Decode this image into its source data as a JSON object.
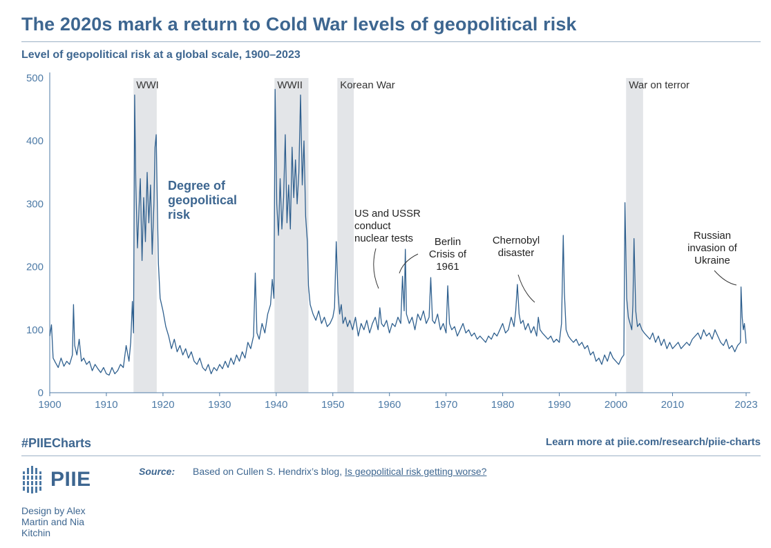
{
  "header": {
    "title": "The 2020s mark a return to Cold War levels of geopolitical risk",
    "subtitle": "Level of geopolitical risk at a global scale, 1900–2023"
  },
  "chart_data": {
    "type": "line",
    "xlim": [
      1900,
      2023
    ],
    "ylim": [
      0,
      500
    ],
    "yticks": [
      0,
      100,
      200,
      300,
      400,
      500
    ],
    "xticks": [
      1900,
      1910,
      1920,
      1930,
      1940,
      1950,
      1960,
      1970,
      1980,
      1990,
      2000,
      2010,
      2023
    ],
    "grid": false,
    "line_color": "#2e5f8e",
    "band_color": "#e3e5e8",
    "series": [
      {
        "name": "Degree of geopolitical risk",
        "points": [
          [
            1900.0,
            90
          ],
          [
            1900.3,
            108
          ],
          [
            1900.6,
            55
          ],
          [
            1901.0,
            48
          ],
          [
            1901.5,
            40
          ],
          [
            1902.0,
            55
          ],
          [
            1902.5,
            42
          ],
          [
            1903.0,
            50
          ],
          [
            1903.5,
            45
          ],
          [
            1904.0,
            60
          ],
          [
            1904.2,
            140
          ],
          [
            1904.4,
            75
          ],
          [
            1904.8,
            60
          ],
          [
            1905.2,
            85
          ],
          [
            1905.6,
            50
          ],
          [
            1906.0,
            55
          ],
          [
            1906.5,
            45
          ],
          [
            1907.0,
            50
          ],
          [
            1907.5,
            35
          ],
          [
            1908.0,
            45
          ],
          [
            1908.5,
            38
          ],
          [
            1909.0,
            32
          ],
          [
            1909.5,
            40
          ],
          [
            1910.0,
            30
          ],
          [
            1910.5,
            28
          ],
          [
            1911.0,
            40
          ],
          [
            1911.5,
            30
          ],
          [
            1912.0,
            35
          ],
          [
            1912.5,
            45
          ],
          [
            1913.0,
            40
          ],
          [
            1913.5,
            75
          ],
          [
            1914.0,
            50
          ],
          [
            1914.3,
            80
          ],
          [
            1914.6,
            145
          ],
          [
            1914.8,
            95
          ],
          [
            1915.0,
            473
          ],
          [
            1915.2,
            330
          ],
          [
            1915.5,
            230
          ],
          [
            1915.8,
            300
          ],
          [
            1916.0,
            340
          ],
          [
            1916.3,
            210
          ],
          [
            1916.6,
            310
          ],
          [
            1916.9,
            240
          ],
          [
            1917.2,
            350
          ],
          [
            1917.5,
            270
          ],
          [
            1917.8,
            330
          ],
          [
            1918.1,
            220
          ],
          [
            1918.4,
            300
          ],
          [
            1918.6,
            390
          ],
          [
            1918.8,
            410
          ],
          [
            1919.0,
            300
          ],
          [
            1919.2,
            205
          ],
          [
            1919.5,
            150
          ],
          [
            1920.0,
            130
          ],
          [
            1920.5,
            105
          ],
          [
            1921.0,
            90
          ],
          [
            1921.5,
            70
          ],
          [
            1922.0,
            85
          ],
          [
            1922.5,
            65
          ],
          [
            1923.0,
            75
          ],
          [
            1923.5,
            60
          ],
          [
            1924.0,
            70
          ],
          [
            1924.5,
            55
          ],
          [
            1925.0,
            65
          ],
          [
            1925.5,
            50
          ],
          [
            1926.0,
            45
          ],
          [
            1926.5,
            55
          ],
          [
            1927.0,
            40
          ],
          [
            1927.5,
            35
          ],
          [
            1928.0,
            45
          ],
          [
            1928.5,
            30
          ],
          [
            1929.0,
            40
          ],
          [
            1929.5,
            35
          ],
          [
            1930.0,
            45
          ],
          [
            1930.5,
            38
          ],
          [
            1931.0,
            50
          ],
          [
            1931.5,
            40
          ],
          [
            1932.0,
            55
          ],
          [
            1932.5,
            45
          ],
          [
            1933.0,
            60
          ],
          [
            1933.5,
            50
          ],
          [
            1934.0,
            65
          ],
          [
            1934.5,
            55
          ],
          [
            1935.0,
            80
          ],
          [
            1935.5,
            70
          ],
          [
            1936.0,
            90
          ],
          [
            1936.3,
            190
          ],
          [
            1936.6,
            95
          ],
          [
            1937.0,
            85
          ],
          [
            1937.5,
            110
          ],
          [
            1938.0,
            95
          ],
          [
            1938.5,
            125
          ],
          [
            1939.0,
            140
          ],
          [
            1939.3,
            180
          ],
          [
            1939.6,
            150
          ],
          [
            1939.8,
            482
          ],
          [
            1940.1,
            300
          ],
          [
            1940.4,
            250
          ],
          [
            1940.7,
            340
          ],
          [
            1941.0,
            260
          ],
          [
            1941.3,
            310
          ],
          [
            1941.6,
            410
          ],
          [
            1941.9,
            270
          ],
          [
            1942.2,
            330
          ],
          [
            1942.5,
            260
          ],
          [
            1942.8,
            390
          ],
          [
            1943.1,
            310
          ],
          [
            1943.4,
            370
          ],
          [
            1943.7,
            300
          ],
          [
            1944.0,
            350
          ],
          [
            1944.3,
            473
          ],
          [
            1944.6,
            330
          ],
          [
            1944.9,
            400
          ],
          [
            1945.2,
            280
          ],
          [
            1945.5,
            240
          ],
          [
            1945.7,
            170
          ],
          [
            1946.0,
            140
          ],
          [
            1946.5,
            125
          ],
          [
            1947.0,
            115
          ],
          [
            1947.5,
            130
          ],
          [
            1948.0,
            110
          ],
          [
            1948.5,
            120
          ],
          [
            1949.0,
            105
          ],
          [
            1949.5,
            110
          ],
          [
            1950.0,
            120
          ],
          [
            1950.3,
            135
          ],
          [
            1950.6,
            240
          ],
          [
            1950.9,
            160
          ],
          [
            1951.2,
            125
          ],
          [
            1951.5,
            140
          ],
          [
            1951.8,
            110
          ],
          [
            1952.2,
            120
          ],
          [
            1952.6,
            105
          ],
          [
            1953.0,
            115
          ],
          [
            1953.5,
            100
          ],
          [
            1954.0,
            120
          ],
          [
            1954.5,
            90
          ],
          [
            1955.0,
            110
          ],
          [
            1955.5,
            100
          ],
          [
            1956.0,
            115
          ],
          [
            1956.5,
            95
          ],
          [
            1957.0,
            110
          ],
          [
            1957.5,
            120
          ],
          [
            1958.0,
            100
          ],
          [
            1958.3,
            135
          ],
          [
            1958.6,
            110
          ],
          [
            1959.0,
            105
          ],
          [
            1959.5,
            115
          ],
          [
            1960.0,
            95
          ],
          [
            1960.5,
            110
          ],
          [
            1961.0,
            105
          ],
          [
            1961.5,
            120
          ],
          [
            1962.0,
            110
          ],
          [
            1962.3,
            185
          ],
          [
            1962.6,
            130
          ],
          [
            1962.8,
            228
          ],
          [
            1963.0,
            125
          ],
          [
            1963.5,
            110
          ],
          [
            1964.0,
            120
          ],
          [
            1964.5,
            100
          ],
          [
            1965.0,
            125
          ],
          [
            1965.5,
            115
          ],
          [
            1966.0,
            130
          ],
          [
            1966.5,
            110
          ],
          [
            1967.0,
            120
          ],
          [
            1967.3,
            183
          ],
          [
            1967.6,
            115
          ],
          [
            1968.0,
            110
          ],
          [
            1968.5,
            125
          ],
          [
            1969.0,
            100
          ],
          [
            1969.5,
            110
          ],
          [
            1970.0,
            95
          ],
          [
            1970.3,
            170
          ],
          [
            1970.6,
            110
          ],
          [
            1971.0,
            100
          ],
          [
            1971.5,
            105
          ],
          [
            1972.0,
            90
          ],
          [
            1972.5,
            100
          ],
          [
            1973.0,
            110
          ],
          [
            1973.5,
            95
          ],
          [
            1974.0,
            100
          ],
          [
            1974.5,
            90
          ],
          [
            1975.0,
            95
          ],
          [
            1975.5,
            85
          ],
          [
            1976.0,
            90
          ],
          [
            1976.5,
            85
          ],
          [
            1977.0,
            80
          ],
          [
            1977.5,
            90
          ],
          [
            1978.0,
            85
          ],
          [
            1978.5,
            95
          ],
          [
            1979.0,
            90
          ],
          [
            1979.5,
            100
          ],
          [
            1980.0,
            110
          ],
          [
            1980.5,
            95
          ],
          [
            1981.0,
            100
          ],
          [
            1981.5,
            120
          ],
          [
            1982.0,
            105
          ],
          [
            1982.3,
            130
          ],
          [
            1982.6,
            172
          ],
          [
            1982.9,
            125
          ],
          [
            1983.2,
            110
          ],
          [
            1983.6,
            115
          ],
          [
            1984.0,
            100
          ],
          [
            1984.5,
            110
          ],
          [
            1985.0,
            95
          ],
          [
            1985.5,
            105
          ],
          [
            1986.0,
            90
          ],
          [
            1986.3,
            120
          ],
          [
            1986.6,
            100
          ],
          [
            1987.0,
            95
          ],
          [
            1987.5,
            90
          ],
          [
            1988.0,
            85
          ],
          [
            1988.5,
            90
          ],
          [
            1989.0,
            80
          ],
          [
            1989.5,
            85
          ],
          [
            1990.0,
            80
          ],
          [
            1990.4,
            110
          ],
          [
            1990.7,
            250
          ],
          [
            1990.9,
            160
          ],
          [
            1991.2,
            100
          ],
          [
            1991.6,
            90
          ],
          [
            1992.0,
            85
          ],
          [
            1992.5,
            80
          ],
          [
            1993.0,
            85
          ],
          [
            1993.5,
            75
          ],
          [
            1994.0,
            80
          ],
          [
            1994.5,
            70
          ],
          [
            1995.0,
            75
          ],
          [
            1995.5,
            60
          ],
          [
            1996.0,
            65
          ],
          [
            1996.5,
            50
          ],
          [
            1997.0,
            55
          ],
          [
            1997.5,
            45
          ],
          [
            1998.0,
            60
          ],
          [
            1998.5,
            50
          ],
          [
            1999.0,
            65
          ],
          [
            1999.5,
            55
          ],
          [
            2000.0,
            50
          ],
          [
            2000.5,
            45
          ],
          [
            2001.0,
            55
          ],
          [
            2001.4,
            60
          ],
          [
            2001.6,
            302
          ],
          [
            2001.9,
            150
          ],
          [
            2002.2,
            120
          ],
          [
            2002.5,
            110
          ],
          [
            2002.8,
            100
          ],
          [
            2003.0,
            140
          ],
          [
            2003.2,
            245
          ],
          [
            2003.5,
            130
          ],
          [
            2003.8,
            105
          ],
          [
            2004.2,
            110
          ],
          [
            2004.6,
            100
          ],
          [
            2005.0,
            95
          ],
          [
            2005.5,
            90
          ],
          [
            2006.0,
            85
          ],
          [
            2006.5,
            95
          ],
          [
            2007.0,
            80
          ],
          [
            2007.5,
            90
          ],
          [
            2008.0,
            75
          ],
          [
            2008.5,
            85
          ],
          [
            2009.0,
            70
          ],
          [
            2009.5,
            80
          ],
          [
            2010.0,
            70
          ],
          [
            2010.5,
            75
          ],
          [
            2011.0,
            80
          ],
          [
            2011.5,
            70
          ],
          [
            2012.0,
            75
          ],
          [
            2012.5,
            80
          ],
          [
            2013.0,
            75
          ],
          [
            2013.5,
            85
          ],
          [
            2014.0,
            90
          ],
          [
            2014.5,
            95
          ],
          [
            2015.0,
            85
          ],
          [
            2015.5,
            100
          ],
          [
            2016.0,
            90
          ],
          [
            2016.5,
            95
          ],
          [
            2017.0,
            85
          ],
          [
            2017.5,
            100
          ],
          [
            2018.0,
            90
          ],
          [
            2018.5,
            80
          ],
          [
            2019.0,
            75
          ],
          [
            2019.5,
            85
          ],
          [
            2020.0,
            70
          ],
          [
            2020.5,
            75
          ],
          [
            2021.0,
            65
          ],
          [
            2021.5,
            75
          ],
          [
            2022.0,
            80
          ],
          [
            2022.1,
            168
          ],
          [
            2022.3,
            120
          ],
          [
            2022.5,
            100
          ],
          [
            2022.7,
            110
          ],
          [
            2022.9,
            90
          ],
          [
            2023.0,
            78
          ]
        ]
      }
    ],
    "bands": [
      {
        "label": "WWI",
        "start": 1914.8,
        "end": 1918.9
      },
      {
        "label": "WWII",
        "start": 1939.7,
        "end": 1945.7
      },
      {
        "label": "Korean War",
        "start": 1950.8,
        "end": 1953.7
      },
      {
        "label": "War on terror",
        "start": 2001.8,
        "end": 2004.8
      }
    ],
    "series_label": "Degree of geopolitical risk",
    "annotations": [
      {
        "id": "nuclear",
        "text": "US and USSR conduct nuclear tests"
      },
      {
        "id": "berlin",
        "text": "Berlin Crisis of 1961"
      },
      {
        "id": "chernobyl",
        "text": "Chernobyl disaster"
      },
      {
        "id": "ukraine",
        "text": "Russian invasion of Ukraine"
      }
    ]
  },
  "footer": {
    "hashtag": "#PIIECharts",
    "learn_more": "Learn more at piie.com/research/piie-charts",
    "logo_text": "PIIE",
    "source_label": "Source:",
    "source_text": "Based on Cullen S. Hendrix’s blog,",
    "source_link": "Is geopolitical risk getting worse?",
    "credit": "Design by Alex Martin and Nia Kitchin"
  }
}
